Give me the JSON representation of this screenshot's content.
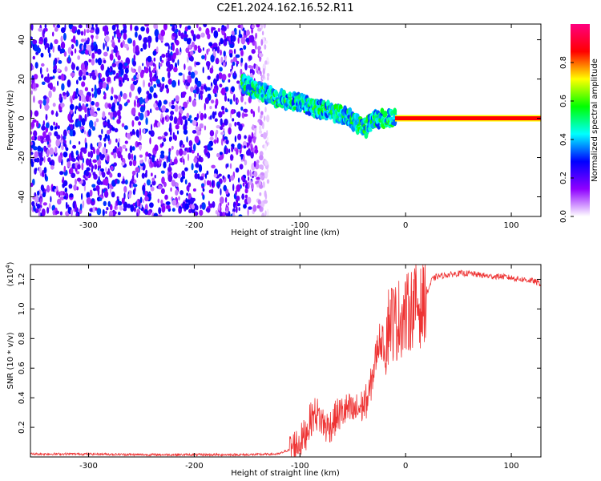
{
  "title": "C2E1.2024.162.16.52.R11",
  "chart_data": [
    {
      "type": "heatmap",
      "xlabel": "Height of straight line (km)",
      "ylabel": "Frequency (Hz)",
      "xlim": [
        -355,
        128
      ],
      "ylim": [
        -50,
        48
      ],
      "xticks": [
        -300,
        -200,
        -100,
        0,
        100
      ],
      "yticks": [
        -40,
        -20,
        0,
        20,
        40
      ],
      "colorbar": {
        "label": "Normalized spectral amplitude",
        "range": [
          0,
          1
        ],
        "ticks": [
          "0.0",
          "0.2",
          "0.4",
          "0.6",
          "0.8"
        ],
        "tick_values": [
          0,
          0.2,
          0.4,
          0.6,
          0.8
        ],
        "colors": [
          "#ffffff",
          "#8f00ff",
          "#0000ff",
          "#00ffff",
          "#00ff00",
          "#ffff00",
          "#ff0000",
          "#ff007f"
        ]
      },
      "noise_region": {
        "x": [
          -355,
          -130
        ],
        "y": [
          -50,
          48
        ]
      },
      "track": {
        "x": [
          -155,
          -140,
          -120,
          -100,
          -85,
          -70,
          -55,
          -45,
          -38,
          -30,
          -20,
          -10,
          0,
          5,
          10,
          20,
          60,
          100,
          128
        ],
        "y": [
          18,
          14,
          10,
          8,
          5,
          3,
          1,
          -3,
          -5,
          -1,
          0,
          0,
          2,
          2,
          0,
          0,
          0,
          0,
          0
        ]
      }
    },
    {
      "type": "line",
      "xlabel": "Height of straight line (km)",
      "ylabel": "SNR (10 * v/v)",
      "y_multiplier": "(x10",
      "y_multiplier_exp": "4",
      "y_multiplier_close": ")",
      "xlim": [
        -355,
        128
      ],
      "ylim": [
        0,
        1.3
      ],
      "xticks": [
        -300,
        -200,
        -100,
        0,
        100
      ],
      "yticks": [
        0.2,
        0.4,
        0.6,
        0.8,
        1.0,
        1.2
      ],
      "ytick_labels": [
        "0.2",
        "0.4",
        "0.6",
        "0.8",
        "1.0",
        "1.2"
      ],
      "color": "#ee3333",
      "series": [
        {
          "x": [
            -355,
            -300,
            -250,
            -200,
            -150,
            -120,
            -110,
            -100,
            -95,
            -90,
            -85,
            -80,
            -75,
            -70,
            -65,
            -60,
            -55,
            -50,
            -45,
            -40,
            -35,
            -30,
            -25,
            -20,
            -15,
            -10,
            -5,
            0,
            5,
            10,
            15,
            20,
            25,
            30,
            40,
            50,
            60,
            70,
            80,
            90,
            100,
            110,
            120,
            128
          ],
          "y": [
            0.02,
            0.02,
            0.015,
            0.015,
            0.015,
            0.02,
            0.05,
            0.1,
            0.15,
            0.25,
            0.3,
            0.25,
            0.2,
            0.22,
            0.28,
            0.3,
            0.32,
            0.3,
            0.32,
            0.35,
            0.4,
            0.6,
            0.8,
            0.75,
            0.95,
            0.9,
            0.95,
            0.95,
            1.0,
            1.05,
            1.0,
            1.1,
            1.2,
            1.22,
            1.23,
            1.24,
            1.24,
            1.23,
            1.22,
            1.22,
            1.21,
            1.2,
            1.19,
            1.17
          ]
        }
      ]
    }
  ]
}
